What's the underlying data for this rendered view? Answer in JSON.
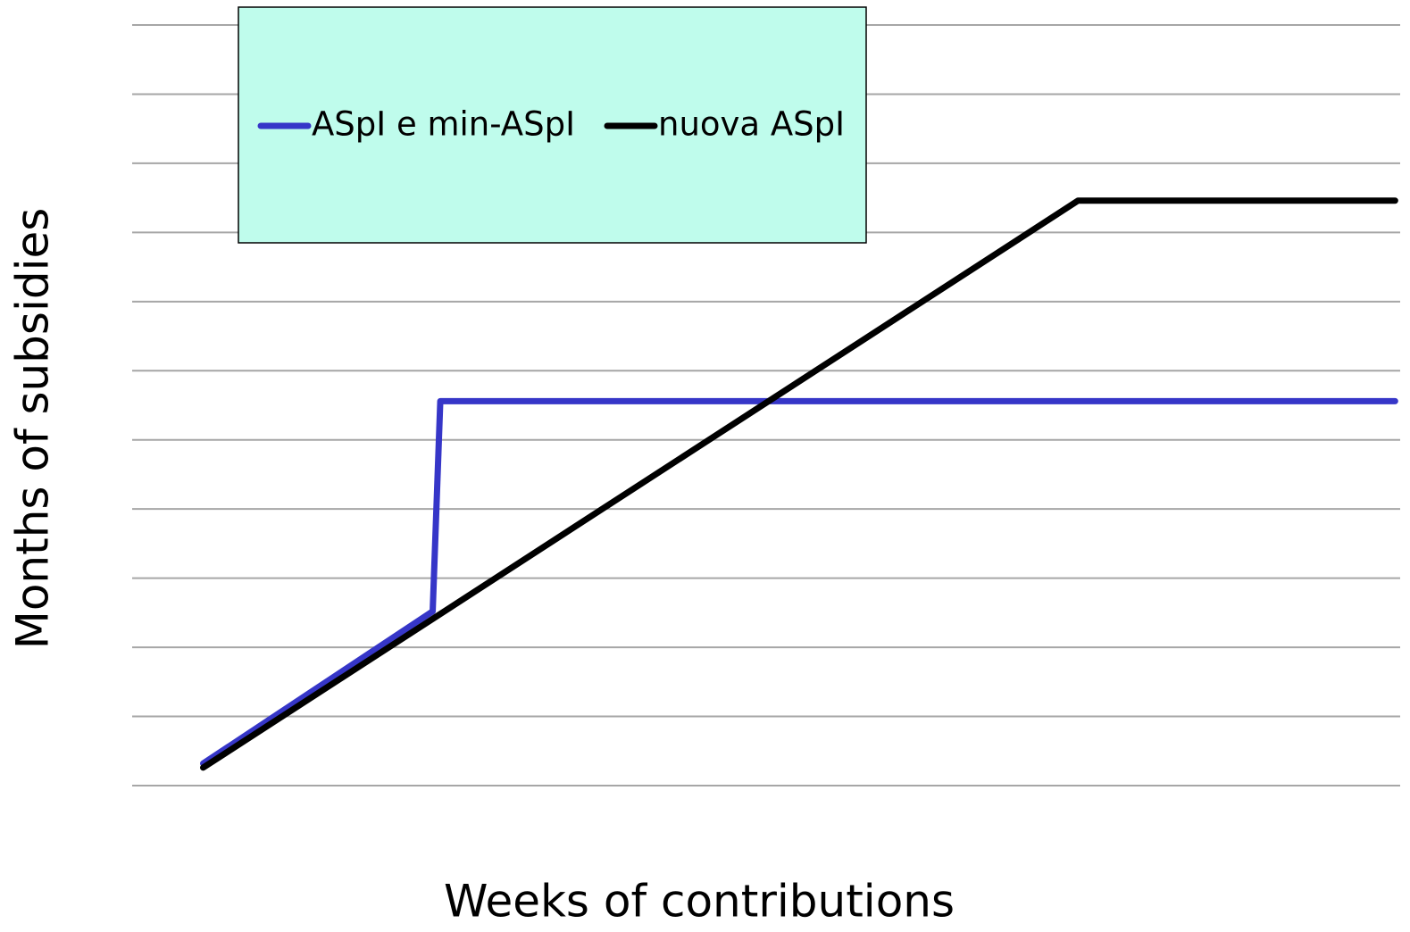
{
  "chart_data": {
    "type": "line",
    "x_label": "Weeks of contributions",
    "y_label": "Months of subsidies",
    "xlim": [
      0,
      100
    ],
    "ylim": [
      0,
      11
    ],
    "yticks": [
      0,
      1,
      2,
      3,
      4,
      5,
      6,
      7,
      8,
      9,
      10,
      11
    ],
    "grid": true,
    "legend": "top-left",
    "series": [
      {
        "name": "ASpI e min-ASpI",
        "color": "#3636c8",
        "x": [
          5.6,
          23.7,
          24.3,
          99.6
        ],
        "values": [
          0.32,
          2.52,
          5.56,
          5.56
        ]
      },
      {
        "name": "nuova ASpI",
        "color": "#000000",
        "x": [
          5.6,
          74.6,
          99.6
        ],
        "values": [
          0.26,
          8.46,
          8.46
        ]
      }
    ]
  }
}
